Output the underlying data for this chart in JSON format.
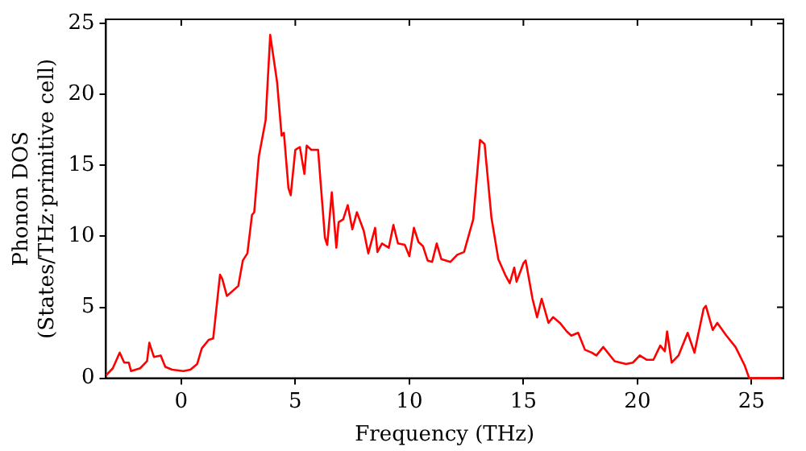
{
  "chart_data": {
    "type": "line",
    "xlabel": "Frequency (THz)",
    "ylabel": "Phonon DOS\n(States/THz·primitive cell)",
    "xlim": [
      -3.3,
      26.4
    ],
    "ylim": [
      0,
      25.3
    ],
    "xticks": [
      0,
      5,
      10,
      15,
      20,
      25
    ],
    "yticks": [
      0,
      5,
      10,
      15,
      20,
      25
    ],
    "grid": false,
    "legend": false,
    "marker": "none",
    "line_style": "solid",
    "x": [
      -3.3,
      -3.0,
      -2.7,
      -2.5,
      -2.3,
      -2.2,
      -1.8,
      -1.5,
      -1.4,
      -1.2,
      -0.9,
      -0.7,
      -0.4,
      0.1,
      0.4,
      0.7,
      0.9,
      1.2,
      1.4,
      1.7,
      1.8,
      2.0,
      2.5,
      2.7,
      2.9,
      3.1,
      3.2,
      3.4,
      3.7,
      3.9,
      4.2,
      4.4,
      4.5,
      4.7,
      4.8,
      5.0,
      5.2,
      5.4,
      5.5,
      5.7,
      6.0,
      6.1,
      6.3,
      6.4,
      6.6,
      6.8,
      6.9,
      7.1,
      7.3,
      7.5,
      7.7,
      8.0,
      8.2,
      8.5,
      8.6,
      8.8,
      9.1,
      9.3,
      9.5,
      9.8,
      10.0,
      10.2,
      10.4,
      10.6,
      10.8,
      11.0,
      11.2,
      11.4,
      11.8,
      12.1,
      12.4,
      12.8,
      13.1,
      13.3,
      13.6,
      13.9,
      14.2,
      14.4,
      14.6,
      14.7,
      15.0,
      15.1,
      15.4,
      15.6,
      15.8,
      16.1,
      16.3,
      16.6,
      16.9,
      17.1,
      17.4,
      17.7,
      18.0,
      18.2,
      18.5,
      19.0,
      19.5,
      19.8,
      20.1,
      20.4,
      20.7,
      21.0,
      21.2,
      21.3,
      21.5,
      21.8,
      22.2,
      22.5,
      22.9,
      23.0,
      23.3,
      23.5,
      23.9,
      24.3,
      24.7,
      24.9,
      26.3
    ],
    "series": [
      {
        "color": "#ff0000",
        "values": [
          0.2,
          0.7,
          1.8,
          1.1,
          1.1,
          0.5,
          0.7,
          1.2,
          2.5,
          1.5,
          1.6,
          0.8,
          0.6,
          0.5,
          0.6,
          1.0,
          2.1,
          2.7,
          2.8,
          7.3,
          7.0,
          5.8,
          6.5,
          8.3,
          8.8,
          11.5,
          11.7,
          15.6,
          18.2,
          24.2,
          20.9,
          17.1,
          17.3,
          13.4,
          12.9,
          16.1,
          16.3,
          14.4,
          16.4,
          16.1,
          16.1,
          14.0,
          9.9,
          9.4,
          13.1,
          9.2,
          11.0,
          11.2,
          12.2,
          10.5,
          11.7,
          10.4,
          8.8,
          10.6,
          8.9,
          9.5,
          9.2,
          10.8,
          9.5,
          9.4,
          8.6,
          10.6,
          9.6,
          9.3,
          8.3,
          8.2,
          9.5,
          8.4,
          8.2,
          8.7,
          8.9,
          11.2,
          16.8,
          16.5,
          11.3,
          8.4,
          7.3,
          6.7,
          7.8,
          6.8,
          8.1,
          8.3,
          5.6,
          4.3,
          5.6,
          3.9,
          4.3,
          3.9,
          3.3,
          3.0,
          3.2,
          2.0,
          1.8,
          1.6,
          2.2,
          1.2,
          1.0,
          1.1,
          1.6,
          1.3,
          1.3,
          2.3,
          1.9,
          3.3,
          1.1,
          1.6,
          3.2,
          1.8,
          4.9,
          5.1,
          3.4,
          3.9,
          3.0,
          2.2,
          0.9,
          0.0,
          0.0
        ]
      }
    ]
  }
}
